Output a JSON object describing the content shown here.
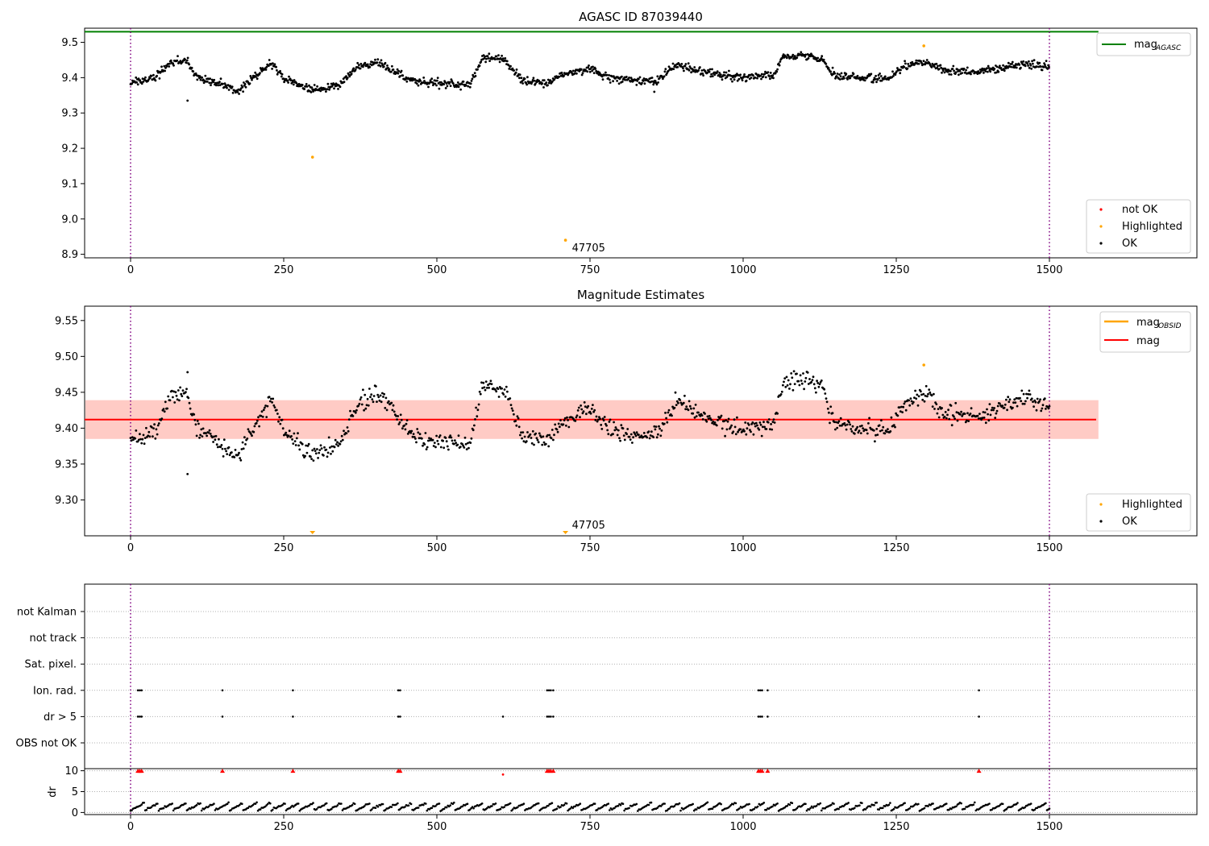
{
  "colors": {
    "ok": "#000000",
    "not_ok": "#ff0000",
    "highlighted": "#ffa500",
    "agasc_line": "#008000",
    "mag_line": "#ff0000",
    "mag_obsid_line": "#ffa500",
    "band_outer": "#ffc0cb",
    "band_inner": "#ffa07a",
    "obs_boundary": "#800080"
  },
  "chart_data": [
    {
      "type": "scatter",
      "title": "AGASC ID 87039440",
      "xlim": [
        -75,
        1740
      ],
      "ylim": [
        8.89,
        9.54
      ],
      "xticks": [
        0,
        250,
        500,
        750,
        1000,
        1250,
        1500
      ],
      "xtick_labels": [
        "0",
        "250",
        "500",
        "750",
        "1000",
        "1250",
        "1500"
      ],
      "yticks": [
        8.9,
        9.0,
        9.1,
        9.2,
        9.3,
        9.4,
        9.5
      ],
      "ytick_labels": [
        "8.9",
        "9.0",
        "9.1",
        "9.2",
        "9.3",
        "9.4",
        "9.5"
      ],
      "reference_lines": [
        {
          "name": "mag_AGASC",
          "y": 9.53,
          "x_range": [
            -75,
            1580
          ]
        }
      ],
      "obs_boundaries": [
        0,
        1500
      ],
      "series_ok_trend": [
        [
          0,
          9.385
        ],
        [
          20,
          9.39
        ],
        [
          40,
          9.4
        ],
        [
          65,
          9.44
        ],
        [
          90,
          9.45
        ],
        [
          110,
          9.4
        ],
        [
          150,
          9.38
        ],
        [
          175,
          9.36
        ],
        [
          200,
          9.4
        ],
        [
          230,
          9.44
        ],
        [
          250,
          9.4
        ],
        [
          275,
          9.38
        ],
        [
          300,
          9.365
        ],
        [
          340,
          9.38
        ],
        [
          370,
          9.43
        ],
        [
          400,
          9.445
        ],
        [
          430,
          9.42
        ],
        [
          460,
          9.39
        ],
        [
          500,
          9.385
        ],
        [
          530,
          9.38
        ],
        [
          555,
          9.38
        ],
        [
          575,
          9.46
        ],
        [
          610,
          9.45
        ],
        [
          640,
          9.39
        ],
        [
          680,
          9.385
        ],
        [
          705,
          9.41
        ],
        [
          750,
          9.425
        ],
        [
          780,
          9.4
        ],
        [
          830,
          9.39
        ],
        [
          860,
          9.395
        ],
        [
          890,
          9.435
        ],
        [
          940,
          9.415
        ],
        [
          990,
          9.4
        ],
        [
          1050,
          9.405
        ],
        [
          1065,
          9.46
        ],
        [
          1100,
          9.465
        ],
        [
          1130,
          9.45
        ],
        [
          1150,
          9.405
        ],
        [
          1200,
          9.4
        ],
        [
          1240,
          9.4
        ],
        [
          1260,
          9.43
        ],
        [
          1300,
          9.445
        ],
        [
          1330,
          9.42
        ],
        [
          1380,
          9.415
        ],
        [
          1430,
          9.43
        ],
        [
          1460,
          9.44
        ],
        [
          1500,
          9.43
        ]
      ],
      "highlighted_points": [
        [
          297,
          9.175
        ],
        [
          710,
          8.94
        ],
        [
          1295,
          9.49
        ]
      ],
      "annotations": [
        {
          "text": "47705",
          "x": 710,
          "y": 8.94
        }
      ],
      "legend": {
        "location": "lower-right",
        "entries": [
          "not OK",
          "Highlighted",
          "OK"
        ]
      },
      "line_legend": {
        "location": "upper-right",
        "entries": [
          "mag",
          "AGASC"
        ]
      }
    },
    {
      "type": "scatter",
      "title": "Magnitude Estimates",
      "xlim": [
        -75,
        1740
      ],
      "ylim": [
        9.25,
        9.57
      ],
      "xticks": [
        0,
        250,
        500,
        750,
        1000,
        1250,
        1500
      ],
      "xtick_labels": [
        "0",
        "250",
        "500",
        "750",
        "1000",
        "1250",
        "1500"
      ],
      "yticks": [
        9.3,
        9.35,
        9.4,
        9.45,
        9.5,
        9.55
      ],
      "ytick_labels": [
        "9.30",
        "9.35",
        "9.40",
        "9.45",
        "9.50",
        "9.55"
      ],
      "mag": 9.412,
      "band_outer": [
        9.385,
        9.439
      ],
      "band_inner": [
        9.385,
        9.439
      ],
      "band_x_range": [
        -75,
        1580
      ],
      "obs_boundaries": [
        0,
        1500
      ],
      "highlighted_clipped": [
        297,
        710
      ],
      "highlighted_points": [
        [
          1295,
          9.488
        ]
      ],
      "annotations": [
        {
          "text": "47705",
          "x": 710
        }
      ],
      "legend": {
        "location": "lower-right",
        "entries": [
          "Highlighted",
          "OK"
        ]
      },
      "line_legend": {
        "location": "upper-right",
        "entries": [
          "mag",
          "OBSID",
          "mag"
        ]
      }
    },
    {
      "type": "scatter",
      "title": "",
      "xlim": [
        -75,
        1740
      ],
      "xticks": [
        0,
        250,
        500,
        750,
        1000,
        1250,
        1500
      ],
      "xtick_labels": [
        "0",
        "250",
        "500",
        "750",
        "1000",
        "1250",
        "1500"
      ],
      "flag_rows": [
        "not Kalman",
        "not track",
        "Sat. pixel.",
        "Ion. rad.",
        "dr > 5",
        "OBS not OK"
      ],
      "flag_points": {
        "Ion. rad.": [
          12,
          15,
          18,
          150,
          265,
          437,
          440,
          680,
          683,
          686,
          690,
          1025,
          1028,
          1031,
          1040,
          1385
        ],
        "dr > 5": [
          12,
          15,
          18,
          150,
          265,
          437,
          440,
          608,
          680,
          683,
          686,
          690,
          1025,
          1028,
          1031,
          1040,
          1385
        ]
      },
      "dr": {
        "ylabel": "dr",
        "ylim": [
          -0.5,
          10.5
        ],
        "yticks": [
          0,
          5,
          10
        ],
        "ytick_labels": [
          "0",
          "5",
          "10"
        ],
        "clipped_high": [
          12,
          15,
          18,
          150,
          265,
          437,
          440,
          680,
          683,
          686,
          690,
          1025,
          1028,
          1031,
          1040,
          1385
        ],
        "outlier": [
          [
            608,
            9.1
          ]
        ]
      }
    }
  ]
}
